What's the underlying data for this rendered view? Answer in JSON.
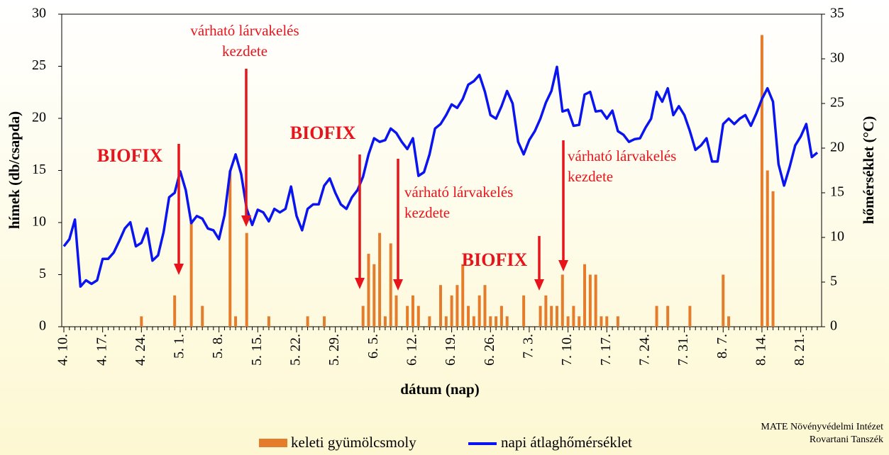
{
  "chart_data": {
    "type": "combo",
    "categories": [
      "4. 10.",
      null,
      null,
      null,
      null,
      null,
      null,
      "4. 17.",
      null,
      null,
      null,
      null,
      null,
      null,
      "4. 24.",
      null,
      null,
      null,
      null,
      null,
      null,
      "5. 1.",
      null,
      null,
      null,
      null,
      null,
      null,
      "5. 8.",
      null,
      null,
      null,
      null,
      null,
      null,
      "5. 15.",
      null,
      null,
      null,
      null,
      null,
      null,
      "5. 22.",
      null,
      null,
      null,
      null,
      null,
      null,
      "5. 29.",
      null,
      null,
      null,
      null,
      null,
      null,
      "6. 5.",
      null,
      null,
      null,
      null,
      null,
      null,
      "6. 12.",
      null,
      null,
      null,
      null,
      null,
      null,
      "6. 19.",
      null,
      null,
      null,
      null,
      null,
      null,
      "6. 26.",
      null,
      null,
      null,
      null,
      null,
      null,
      "7. 3.",
      null,
      null,
      null,
      null,
      null,
      null,
      "7. 10.",
      null,
      null,
      null,
      null,
      null,
      null,
      "7. 17.",
      null,
      null,
      null,
      null,
      null,
      null,
      "7. 24.",
      null,
      null,
      null,
      null,
      null,
      null,
      "7. 31.",
      null,
      null,
      null,
      null,
      null,
      null,
      "8. 7.",
      null,
      null,
      null,
      null,
      null,
      null,
      "8. 14.",
      null,
      null,
      null,
      null,
      null,
      null,
      "8. 21.",
      null,
      null,
      null
    ],
    "series": [
      {
        "name": "keleti gyümölcsmoly",
        "type": "bar",
        "color": "#e57c2b",
        "values": [
          0,
          0,
          0,
          0,
          0,
          0,
          0,
          0,
          0,
          0,
          0,
          0,
          0,
          0,
          1,
          0,
          0,
          0,
          0,
          0,
          3,
          0,
          0,
          10,
          0,
          2,
          0,
          0,
          0,
          0,
          15,
          1,
          0,
          9,
          0,
          0,
          0,
          1,
          0,
          0,
          0,
          0,
          0,
          0,
          1,
          0,
          0,
          1,
          0,
          0,
          0,
          0,
          0,
          0,
          2,
          7,
          6,
          9,
          1,
          8,
          3,
          0,
          2,
          3,
          2,
          0,
          1,
          0,
          4,
          1,
          3,
          4,
          6,
          2,
          1,
          3,
          4,
          1,
          1,
          2,
          1,
          0,
          0,
          3,
          0,
          0,
          2,
          3,
          2,
          2,
          5,
          1,
          2,
          1,
          6,
          5,
          5,
          1,
          1,
          0,
          1,
          0,
          0,
          0,
          0,
          0,
          0,
          2,
          0,
          2,
          0,
          0,
          0,
          2,
          0,
          0,
          0,
          0,
          0,
          5,
          1,
          0,
          0,
          0,
          0,
          0,
          28,
          15,
          13,
          0,
          0,
          0,
          0,
          0,
          0,
          0,
          0
        ]
      },
      {
        "name": "napi átlaghőmérséklet",
        "type": "line",
        "axis": "y2",
        "color": "#0a14f0",
        "values": [
          9.0,
          9.8,
          12.0,
          4.5,
          5.2,
          4.8,
          5.2,
          7.6,
          7.6,
          8.3,
          9.6,
          11.0,
          11.7,
          9.0,
          9.4,
          11.0,
          7.4,
          8.0,
          10.6,
          14.5,
          15.0,
          17.4,
          15.3,
          11.6,
          12.4,
          12.1,
          11.0,
          10.8,
          9.8,
          12.5,
          17.4,
          19.3,
          17.1,
          13.2,
          11.4,
          13.1,
          12.8,
          11.8,
          13.2,
          12.8,
          13.2,
          15.7,
          12.4,
          10.8,
          13.2,
          13.7,
          13.7,
          15.8,
          16.6,
          15.0,
          13.7,
          13.2,
          14.5,
          15.3,
          16.8,
          19.3,
          21.1,
          20.7,
          20.9,
          22.2,
          21.7,
          20.7,
          19.9,
          21.1,
          16.9,
          17.3,
          19.3,
          22.2,
          22.7,
          23.7,
          24.9,
          24.5,
          25.5,
          27.1,
          27.5,
          28.2,
          26.3,
          23.7,
          23.3,
          24.7,
          26.4,
          25.0,
          20.7,
          19.3,
          20.9,
          21.9,
          23.3,
          25.1,
          26.4,
          29.1,
          24.1,
          24.3,
          22.5,
          22.6,
          26.0,
          26.3,
          24.1,
          24.2,
          23.3,
          24.2,
          21.9,
          21.5,
          20.7,
          21.0,
          21.1,
          22.3,
          23.3,
          26.3,
          25.2,
          26.7,
          23.7,
          24.7,
          23.7,
          21.9,
          19.8,
          20.3,
          21.1,
          18.5,
          18.5,
          22.7,
          23.3,
          22.7,
          23.3,
          23.7,
          22.5,
          23.9,
          25.5,
          26.7,
          25.2,
          18.2,
          15.8,
          17.9,
          20.3,
          21.3,
          22.7,
          19.0,
          19.5
        ]
      }
    ],
    "ylim": [
      0,
      30
    ],
    "yticks": [
      0,
      5,
      10,
      15,
      20,
      25,
      30
    ],
    "y2lim": [
      0,
      35
    ],
    "y2ticks": [
      0,
      5,
      10,
      15,
      20,
      25,
      30,
      35
    ],
    "ylabel": "hímek (db/csapda)",
    "y2label": "hőmérséklet (°C)",
    "xlabel": "dátum (nap)",
    "annotations": [
      {
        "lines": [
          "BIOFIX"
        ]
      },
      {
        "lines": [
          "várható lárvakelés",
          "kezdete"
        ]
      },
      {
        "lines": [
          "BIOFIX"
        ]
      },
      {
        "lines": [
          "várható lárvakelés",
          "kezdete"
        ]
      },
      {
        "lines": [
          "BIOFIX"
        ]
      },
      {
        "lines": [
          "várható lárvakelés",
          "kezdete"
        ]
      }
    ],
    "source": [
      "MATE Növényvédelmi Intézet",
      "Rovartani Tanszék"
    ]
  }
}
